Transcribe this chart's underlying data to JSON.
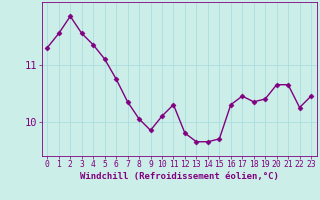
{
  "x": [
    0,
    1,
    2,
    3,
    4,
    5,
    6,
    7,
    8,
    9,
    10,
    11,
    12,
    13,
    14,
    15,
    16,
    17,
    18,
    19,
    20,
    21,
    22,
    23
  ],
  "y": [
    11.3,
    11.55,
    11.85,
    11.55,
    11.35,
    11.1,
    10.75,
    10.35,
    10.05,
    9.85,
    10.1,
    10.3,
    9.8,
    9.65,
    9.65,
    9.7,
    10.3,
    10.45,
    10.35,
    10.4,
    10.65,
    10.65,
    10.25,
    10.45
  ],
  "line_color": "#800080",
  "marker": "D",
  "marker_size": 2.5,
  "bg_color": "#cceee8",
  "grid_color": "#aadddd",
  "ylabel": "",
  "yticks": [
    10,
    11
  ],
  "ylim": [
    9.4,
    12.1
  ],
  "xlim": [
    -0.5,
    23.5
  ],
  "xticks": [
    0,
    1,
    2,
    3,
    4,
    5,
    6,
    7,
    8,
    9,
    10,
    11,
    12,
    13,
    14,
    15,
    16,
    17,
    18,
    19,
    20,
    21,
    22,
    23
  ],
  "xlabel": "Windchill (Refroidissement éolien,°C)",
  "xlabel_fontsize": 6.5,
  "tick_fontsize": 5.8,
  "ytick_fontsize": 7.5,
  "line_width": 1.0
}
